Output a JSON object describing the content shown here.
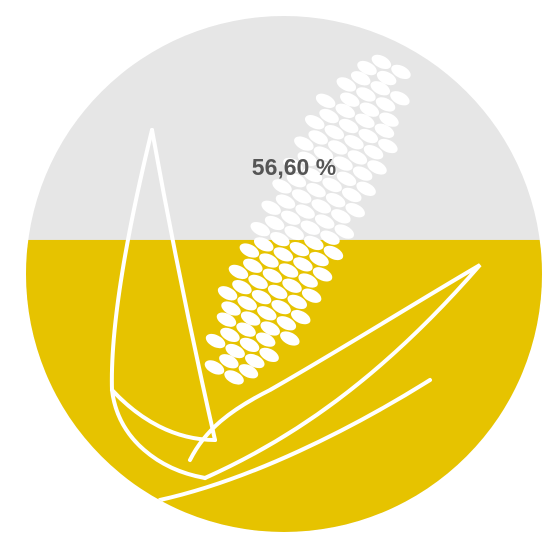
{
  "chart_data": {
    "type": "fill",
    "values": [
      56.6
    ],
    "value_labels": [
      "56,60 %"
    ],
    "ylim": [
      0,
      100
    ],
    "color": "#e6c300",
    "background": "#e6e6e6"
  }
}
